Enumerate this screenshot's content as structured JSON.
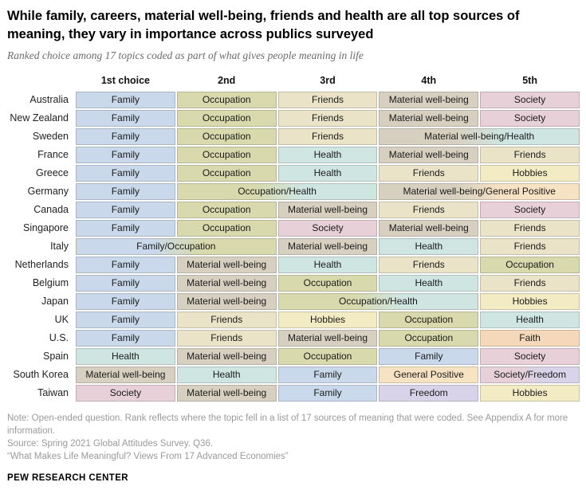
{
  "header": {
    "title": "While family, careers, material well-being, friends and health are all top sources of meaning, they vary in importance across publics surveyed",
    "subtitle": "Ranked choice among 17 topics coded as part of what gives people meaning in life"
  },
  "chart_data": {
    "type": "table",
    "title": "While family, careers, material well-being, friends and health are all top sources of meaning, they vary in importance across publics surveyed",
    "subtitle": "Ranked choice among 17 topics coded as part of what gives people meaning in life",
    "columns": [
      "1st choice",
      "2nd",
      "3rd",
      "4th",
      "5th"
    ],
    "topic_colors": {
      "Family": "#c9d9eb",
      "Occupation": "#d8d9ac",
      "Friends": "#eae3c8",
      "Material well-being": "#d7d0c0",
      "Health": "#cfe5e1",
      "Society": "#e7d0d8",
      "Hobbies": "#f3ebc3",
      "Faith": "#f5d8ba",
      "Freedom": "#d8d3e9",
      "General Positive": "#f8e2c4"
    },
    "rows": [
      {
        "country": "Australia",
        "cells": [
          {
            "label": "Family",
            "topics": [
              "Family"
            ],
            "span": 1
          },
          {
            "label": "Occupation",
            "topics": [
              "Occupation"
            ],
            "span": 1
          },
          {
            "label": "Friends",
            "topics": [
              "Friends"
            ],
            "span": 1
          },
          {
            "label": "Material well-being",
            "topics": [
              "Material well-being"
            ],
            "span": 1
          },
          {
            "label": "Society",
            "topics": [
              "Society"
            ],
            "span": 1
          }
        ]
      },
      {
        "country": "New Zealand",
        "cells": [
          {
            "label": "Family",
            "topics": [
              "Family"
            ],
            "span": 1
          },
          {
            "label": "Occupation",
            "topics": [
              "Occupation"
            ],
            "span": 1
          },
          {
            "label": "Friends",
            "topics": [
              "Friends"
            ],
            "span": 1
          },
          {
            "label": "Material well-being",
            "topics": [
              "Material well-being"
            ],
            "span": 1
          },
          {
            "label": "Society",
            "topics": [
              "Society"
            ],
            "span": 1
          }
        ]
      },
      {
        "country": "Sweden",
        "cells": [
          {
            "label": "Family",
            "topics": [
              "Family"
            ],
            "span": 1
          },
          {
            "label": "Occupation",
            "topics": [
              "Occupation"
            ],
            "span": 1
          },
          {
            "label": "Friends",
            "topics": [
              "Friends"
            ],
            "span": 1
          },
          {
            "label": "Material well-being/Health",
            "topics": [
              "Material well-being",
              "Health"
            ],
            "span": 2
          }
        ]
      },
      {
        "country": "France",
        "cells": [
          {
            "label": "Family",
            "topics": [
              "Family"
            ],
            "span": 1
          },
          {
            "label": "Occupation",
            "topics": [
              "Occupation"
            ],
            "span": 1
          },
          {
            "label": "Health",
            "topics": [
              "Health"
            ],
            "span": 1
          },
          {
            "label": "Material well-being",
            "topics": [
              "Material well-being"
            ],
            "span": 1
          },
          {
            "label": "Friends",
            "topics": [
              "Friends"
            ],
            "span": 1
          }
        ]
      },
      {
        "country": "Greece",
        "cells": [
          {
            "label": "Family",
            "topics": [
              "Family"
            ],
            "span": 1
          },
          {
            "label": "Occupation",
            "topics": [
              "Occupation"
            ],
            "span": 1
          },
          {
            "label": "Health",
            "topics": [
              "Health"
            ],
            "span": 1
          },
          {
            "label": "Friends",
            "topics": [
              "Friends"
            ],
            "span": 1
          },
          {
            "label": "Hobbies",
            "topics": [
              "Hobbies"
            ],
            "span": 1
          }
        ]
      },
      {
        "country": "Germany",
        "cells": [
          {
            "label": "Family",
            "topics": [
              "Family"
            ],
            "span": 1
          },
          {
            "label": "Occupation/Health",
            "topics": [
              "Occupation",
              "Health"
            ],
            "span": 2
          },
          {
            "label": "Material well-being/General Positive",
            "topics": [
              "Material well-being",
              "General Positive"
            ],
            "span": 2
          }
        ]
      },
      {
        "country": "Canada",
        "cells": [
          {
            "label": "Family",
            "topics": [
              "Family"
            ],
            "span": 1
          },
          {
            "label": "Occupation",
            "topics": [
              "Occupation"
            ],
            "span": 1
          },
          {
            "label": "Material well-being",
            "topics": [
              "Material well-being"
            ],
            "span": 1
          },
          {
            "label": "Friends",
            "topics": [
              "Friends"
            ],
            "span": 1
          },
          {
            "label": "Society",
            "topics": [
              "Society"
            ],
            "span": 1
          }
        ]
      },
      {
        "country": "Singapore",
        "cells": [
          {
            "label": "Family",
            "topics": [
              "Family"
            ],
            "span": 1
          },
          {
            "label": "Occupation",
            "topics": [
              "Occupation"
            ],
            "span": 1
          },
          {
            "label": "Society",
            "topics": [
              "Society"
            ],
            "span": 1
          },
          {
            "label": "Material well-being",
            "topics": [
              "Material well-being"
            ],
            "span": 1
          },
          {
            "label": "Friends",
            "topics": [
              "Friends"
            ],
            "span": 1
          }
        ]
      },
      {
        "country": "Italy",
        "cells": [
          {
            "label": "Family/Occupation",
            "topics": [
              "Family",
              "Occupation"
            ],
            "span": 2
          },
          {
            "label": "Material well-being",
            "topics": [
              "Material well-being"
            ],
            "span": 1
          },
          {
            "label": "Health",
            "topics": [
              "Health"
            ],
            "span": 1
          },
          {
            "label": "Friends",
            "topics": [
              "Friends"
            ],
            "span": 1
          }
        ]
      },
      {
        "country": "Netherlands",
        "cells": [
          {
            "label": "Family",
            "topics": [
              "Family"
            ],
            "span": 1
          },
          {
            "label": "Material well-being",
            "topics": [
              "Material well-being"
            ],
            "span": 1
          },
          {
            "label": "Health",
            "topics": [
              "Health"
            ],
            "span": 1
          },
          {
            "label": "Friends",
            "topics": [
              "Friends"
            ],
            "span": 1
          },
          {
            "label": "Occupation",
            "topics": [
              "Occupation"
            ],
            "span": 1
          }
        ]
      },
      {
        "country": "Belgium",
        "cells": [
          {
            "label": "Family",
            "topics": [
              "Family"
            ],
            "span": 1
          },
          {
            "label": "Material well-being",
            "topics": [
              "Material well-being"
            ],
            "span": 1
          },
          {
            "label": "Occupation",
            "topics": [
              "Occupation"
            ],
            "span": 1
          },
          {
            "label": "Health",
            "topics": [
              "Health"
            ],
            "span": 1
          },
          {
            "label": "Friends",
            "topics": [
              "Friends"
            ],
            "span": 1
          }
        ]
      },
      {
        "country": "Japan",
        "cells": [
          {
            "label": "Family",
            "topics": [
              "Family"
            ],
            "span": 1
          },
          {
            "label": "Material well-being",
            "topics": [
              "Material well-being"
            ],
            "span": 1
          },
          {
            "label": "Occupation/Health",
            "topics": [
              "Occupation",
              "Health"
            ],
            "span": 2
          },
          {
            "label": "Hobbies",
            "topics": [
              "Hobbies"
            ],
            "span": 1
          }
        ]
      },
      {
        "country": "UK",
        "cells": [
          {
            "label": "Family",
            "topics": [
              "Family"
            ],
            "span": 1
          },
          {
            "label": "Friends",
            "topics": [
              "Friends"
            ],
            "span": 1
          },
          {
            "label": "Hobbies",
            "topics": [
              "Hobbies"
            ],
            "span": 1
          },
          {
            "label": "Occupation",
            "topics": [
              "Occupation"
            ],
            "span": 1
          },
          {
            "label": "Health",
            "topics": [
              "Health"
            ],
            "span": 1
          }
        ]
      },
      {
        "country": "U.S.",
        "cells": [
          {
            "label": "Family",
            "topics": [
              "Family"
            ],
            "span": 1
          },
          {
            "label": "Friends",
            "topics": [
              "Friends"
            ],
            "span": 1
          },
          {
            "label": "Material well-being",
            "topics": [
              "Material well-being"
            ],
            "span": 1
          },
          {
            "label": "Occupation",
            "topics": [
              "Occupation"
            ],
            "span": 1
          },
          {
            "label": "Faith",
            "topics": [
              "Faith"
            ],
            "span": 1
          }
        ]
      },
      {
        "country": "Spain",
        "cells": [
          {
            "label": "Health",
            "topics": [
              "Health"
            ],
            "span": 1
          },
          {
            "label": "Material well-being",
            "topics": [
              "Material well-being"
            ],
            "span": 1
          },
          {
            "label": "Occupation",
            "topics": [
              "Occupation"
            ],
            "span": 1
          },
          {
            "label": "Family",
            "topics": [
              "Family"
            ],
            "span": 1
          },
          {
            "label": "Society",
            "topics": [
              "Society"
            ],
            "span": 1
          }
        ]
      },
      {
        "country": "South Korea",
        "cells": [
          {
            "label": "Material well-being",
            "topics": [
              "Material well-being"
            ],
            "span": 1
          },
          {
            "label": "Health",
            "topics": [
              "Health"
            ],
            "span": 1
          },
          {
            "label": "Family",
            "topics": [
              "Family"
            ],
            "span": 1
          },
          {
            "label": "General Positive",
            "topics": [
              "General Positive"
            ],
            "span": 1
          },
          {
            "label": "Society/Freedom",
            "topics": [
              "Society",
              "Freedom"
            ],
            "span": 1
          }
        ]
      },
      {
        "country": "Taiwan",
        "cells": [
          {
            "label": "Society",
            "topics": [
              "Society"
            ],
            "span": 1
          },
          {
            "label": "Material well-being",
            "topics": [
              "Material well-being"
            ],
            "span": 1
          },
          {
            "label": "Family",
            "topics": [
              "Family"
            ],
            "span": 1
          },
          {
            "label": "Freedom",
            "topics": [
              "Freedom"
            ],
            "span": 1
          },
          {
            "label": "Hobbies",
            "topics": [
              "Hobbies"
            ],
            "span": 1
          }
        ]
      }
    ]
  },
  "footer": {
    "note": "Note: Open-ended question. Rank reflects where the topic fell in a list of 17 sources of meaning that were coded. See Appendix A for more information.",
    "source": "Source: Spring 2021 Global Attitudes Survey. Q36.",
    "report": "“What Makes Life Meaningful? Views From 17 Advanced Economies”",
    "brand": "PEW RESEARCH CENTER"
  }
}
